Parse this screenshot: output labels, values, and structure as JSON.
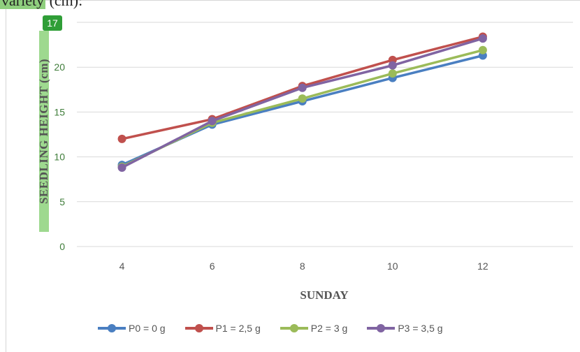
{
  "caption": {
    "text_partial": "variety",
    "text_rest": " (cm):"
  },
  "badge": "17",
  "chart_data": {
    "type": "line",
    "xlabel": "SUNDAY",
    "ylabel": "SEEDLING HEIGHT (cm)",
    "x": [
      4,
      6,
      8,
      10,
      12
    ],
    "xlim": [
      3,
      14
    ],
    "ylim": [
      0,
      25
    ],
    "yticks": [
      0,
      5,
      10,
      15,
      20
    ],
    "grid": true,
    "legend_position": "bottom",
    "series": [
      {
        "name": "P0 = 0 g",
        "color": "#4a7fc1",
        "values": [
          9.1,
          13.6,
          16.2,
          18.8,
          21.3
        ]
      },
      {
        "name": "P1 = 2,5 g",
        "color": "#c0504d",
        "values": [
          12.0,
          14.2,
          17.9,
          20.8,
          23.4
        ]
      },
      {
        "name": "P2 = 3 g",
        "color": "#9bbb59",
        "values": [
          8.9,
          13.8,
          16.5,
          19.3,
          21.9
        ]
      },
      {
        "name": "P3 = 3,5 g",
        "color": "#8064a2",
        "values": [
          8.8,
          14.0,
          17.7,
          20.2,
          23.2
        ]
      }
    ]
  }
}
